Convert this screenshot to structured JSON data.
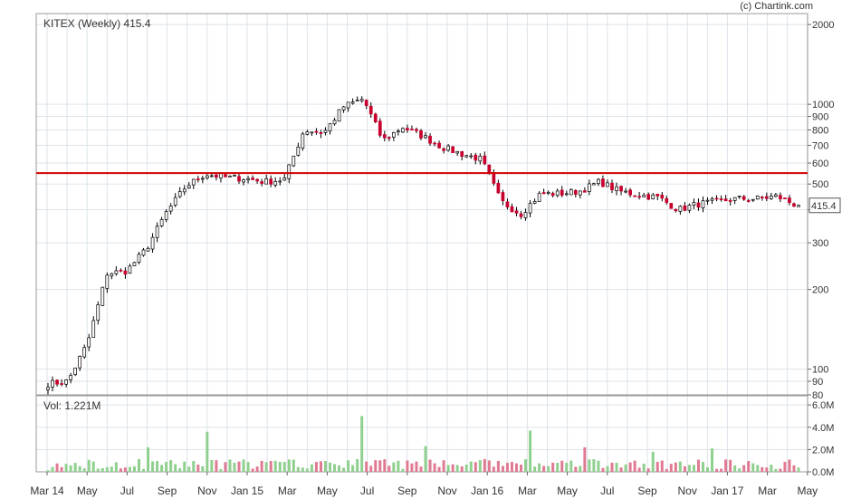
{
  "watermark": "(c) Chartink.com",
  "price_panel": {
    "title": "KITEX (Weekly) 415.4",
    "last_price_label": "415.4",
    "y_ticks": [
      80,
      90,
      100,
      200,
      300,
      400,
      500,
      600,
      700,
      800,
      900,
      1000,
      2000
    ],
    "y_tick_labels": [
      "80",
      "90",
      "100",
      "200",
      "300",
      "",
      "500",
      "600",
      "700",
      "800",
      "900",
      "1000",
      "2000"
    ],
    "horizontal_line_level": 550,
    "horizontal_line_color": "#d40000"
  },
  "volume_panel": {
    "title": "Vol: 1.221M",
    "y_ticks": [
      0,
      2,
      4,
      6
    ],
    "y_tick_labels": [
      "0.0M",
      "2.0M",
      "4.0M",
      "6.0M"
    ]
  },
  "x_axis": {
    "labels": [
      "Mar 14",
      "May",
      "Jul",
      "Sep",
      "Nov",
      "Jan 15",
      "Mar",
      "May",
      "Jul",
      "Sep",
      "Nov",
      "Jan 16",
      "Mar",
      "May",
      "Jul",
      "Sep",
      "Nov",
      "Jan 17",
      "Mar",
      "May"
    ]
  },
  "colors": {
    "up_candle": "#ffffff",
    "down_candle": "#c8002d",
    "wick": "#000000",
    "vol_up": "#8fd08f",
    "vol_down": "#e07a92",
    "grid": "#dde3ea"
  },
  "chart_data": {
    "type": "candlestick",
    "title": "KITEX (Weekly) 415.4",
    "scale": "log",
    "ylim": [
      80,
      2200
    ],
    "series": [
      {
        "name": "KITEX",
        "close_points": [
          [
            "Mar 14",
            88
          ],
          [
            "Apr 14",
            90
          ],
          [
            "May 14",
            125
          ],
          [
            "Jun 14",
            230
          ],
          [
            "Jul 14",
            235
          ],
          [
            "Aug 14",
            285
          ],
          [
            "Sep 14",
            390
          ],
          [
            "Oct 14",
            490
          ],
          [
            "Nov 14",
            545
          ],
          [
            "Dec 14",
            530
          ],
          [
            "Jan 15",
            525
          ],
          [
            "Feb 15",
            510
          ],
          [
            "Mar 15",
            520
          ],
          [
            "Apr 15",
            800
          ],
          [
            "May 15",
            780
          ],
          [
            "Jun 15",
            980
          ],
          [
            "Jul 15",
            1050
          ],
          [
            "Aug 15",
            730
          ],
          [
            "Sep 15",
            820
          ],
          [
            "Oct 15",
            760
          ],
          [
            "Nov 15",
            690
          ],
          [
            "Dec 15",
            650
          ],
          [
            "Jan 16",
            620
          ],
          [
            "Feb 16",
            430
          ],
          [
            "Mar 16",
            385
          ],
          [
            "Apr 16",
            460
          ],
          [
            "May 16",
            460
          ],
          [
            "Jun 16",
            470
          ],
          [
            "Jul 16",
            510
          ],
          [
            "Aug 16",
            470
          ],
          [
            "Sep 16",
            455
          ],
          [
            "Oct 16",
            445
          ],
          [
            "Nov 16",
            400
          ],
          [
            "Dec 16",
            420
          ],
          [
            "Jan 17",
            430
          ],
          [
            "Feb 17",
            440
          ],
          [
            "Mar 17",
            440
          ],
          [
            "Apr 17",
            450
          ],
          [
            "May 17",
            415.4
          ]
        ]
      }
    ],
    "volume_title": "Vol: 1.221M",
    "volume_ylim": [
      0,
      6.5
    ],
    "volume_unit": "M"
  }
}
